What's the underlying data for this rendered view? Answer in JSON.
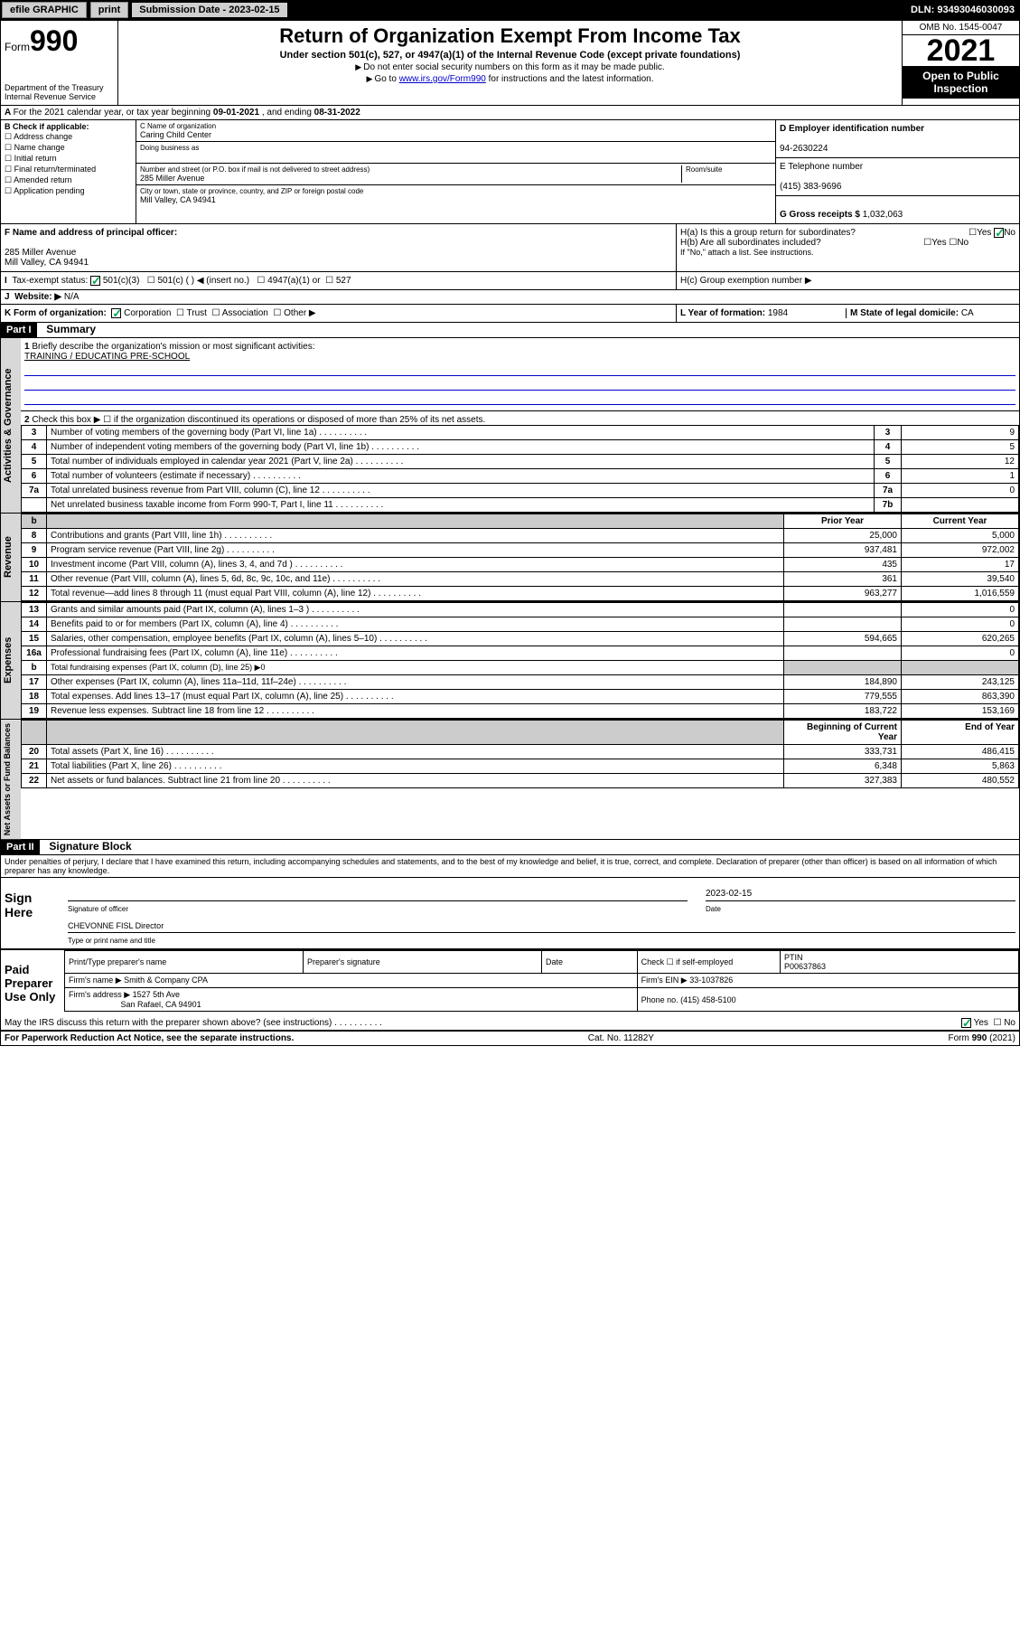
{
  "topbar": {
    "efile": "efile GRAPHIC",
    "print": "print",
    "sub_label": "Submission Date - ",
    "sub_date": "2023-02-15",
    "dln_label": "DLN: ",
    "dln": "93493046030093"
  },
  "header": {
    "form_label": "Form",
    "form_no": "990",
    "title": "Return of Organization Exempt From Income Tax",
    "subtitle": "Under section 501(c), 527, or 4947(a)(1) of the Internal Revenue Code (except private foundations)",
    "note1": "Do not enter social security numbers on this form as it may be made public.",
    "note2_pre": "Go to ",
    "note2_link": "www.irs.gov/Form990",
    "note2_post": " for instructions and the latest information.",
    "dept": "Department of the Treasury",
    "irs": "Internal Revenue Service",
    "omb": "OMB No. 1545-0047",
    "year": "2021",
    "open_pub": "Open to Public Inspection"
  },
  "periodA": {
    "text_pre": "For the 2021 calendar year, or tax year beginning ",
    "begin": "09-01-2021",
    "mid": " , and ending ",
    "end": "08-31-2022"
  },
  "boxB": {
    "title": "B Check if applicable:",
    "items": [
      "Address change",
      "Name change",
      "Initial return",
      "Final return/terminated",
      "Amended return",
      "Application pending"
    ]
  },
  "boxC": {
    "name_label": "C Name of organization",
    "name": "Caring Child Center",
    "dba_label": "Doing business as",
    "street_label": "Number and street (or P.O. box if mail is not delivered to street address)",
    "room_label": "Room/suite",
    "street": "285 Miller Avenue",
    "city_label": "City or town, state or province, country, and ZIP or foreign postal code",
    "city": "Mill Valley, CA  94941"
  },
  "boxD": {
    "label": "D Employer identification number",
    "value": "94-2630224"
  },
  "boxE": {
    "label": "E Telephone number",
    "value": "(415) 383-9696"
  },
  "boxG": {
    "label": "G Gross receipts $ ",
    "value": "1,032,063"
  },
  "boxF": {
    "label": "F  Name and address of principal officer:",
    "addr1": "285 Miller Avenue",
    "addr2": "Mill Valley, CA  94941"
  },
  "boxH": {
    "ha": "H(a)  Is this a group return for subordinates?",
    "hb": "H(b)  Are all subordinates included?",
    "hb_note": "If \"No,\" attach a list. See instructions.",
    "hc": "H(c)  Group exemption number ▶",
    "yes": "Yes",
    "no": "No"
  },
  "boxI": {
    "label": "Tax-exempt status:",
    "opt1": "501(c)(3)",
    "opt2": "501(c) (  ) ◀ (insert no.)",
    "opt3": "4947(a)(1) or",
    "opt4": "527"
  },
  "boxJ": {
    "label": "Website: ▶",
    "value": "N/A"
  },
  "boxK": {
    "label": "K Form of organization:",
    "opts": [
      "Corporation",
      "Trust",
      "Association",
      "Other ▶"
    ]
  },
  "boxL": {
    "label": "L Year of formation: ",
    "value": "1984"
  },
  "boxM": {
    "label": "M State of legal domicile: ",
    "value": "CA"
  },
  "part1": {
    "hdr": "Part I",
    "title": "Summary",
    "q1": "Briefly describe the organization's mission or most significant activities:",
    "q1_ans": "TRAINING / EDUCATING PRE-SCHOOL",
    "q2": "Check this box ▶ ☐  if the organization discontinued its operations or disposed of more than 25% of its net assets.",
    "sect_gov": "Activities & Governance",
    "sect_rev": "Revenue",
    "sect_exp": "Expenses",
    "sect_net": "Net Assets or Fund Balances",
    "col_prior": "Prior Year",
    "col_curr": "Current Year",
    "col_beg": "Beginning of Current Year",
    "col_end": "End of Year",
    "lines_gov": [
      {
        "n": "3",
        "t": "Number of voting members of the governing body (Part VI, line 1a)",
        "ln": "3",
        "v": "9"
      },
      {
        "n": "4",
        "t": "Number of independent voting members of the governing body (Part VI, line 1b)",
        "ln": "4",
        "v": "5"
      },
      {
        "n": "5",
        "t": "Total number of individuals employed in calendar year 2021 (Part V, line 2a)",
        "ln": "5",
        "v": "12"
      },
      {
        "n": "6",
        "t": "Total number of volunteers (estimate if necessary)",
        "ln": "6",
        "v": "1"
      },
      {
        "n": "7a",
        "t": "Total unrelated business revenue from Part VIII, column (C), line 12",
        "ln": "7a",
        "v": "0"
      },
      {
        "n": "",
        "t": "Net unrelated business taxable income from Form 990-T, Part I, line 11",
        "ln": "7b",
        "v": ""
      }
    ],
    "lines_rev": [
      {
        "n": "8",
        "t": "Contributions and grants (Part VIII, line 1h)",
        "p": "25,000",
        "c": "5,000"
      },
      {
        "n": "9",
        "t": "Program service revenue (Part VIII, line 2g)",
        "p": "937,481",
        "c": "972,002"
      },
      {
        "n": "10",
        "t": "Investment income (Part VIII, column (A), lines 3, 4, and 7d )",
        "p": "435",
        "c": "17"
      },
      {
        "n": "11",
        "t": "Other revenue (Part VIII, column (A), lines 5, 6d, 8c, 9c, 10c, and 11e)",
        "p": "361",
        "c": "39,540"
      },
      {
        "n": "12",
        "t": "Total revenue—add lines 8 through 11 (must equal Part VIII, column (A), line 12)",
        "p": "963,277",
        "c": "1,016,559"
      }
    ],
    "lines_exp": [
      {
        "n": "13",
        "t": "Grants and similar amounts paid (Part IX, column (A), lines 1–3 )",
        "p": "",
        "c": "0"
      },
      {
        "n": "14",
        "t": "Benefits paid to or for members (Part IX, column (A), line 4)",
        "p": "",
        "c": "0"
      },
      {
        "n": "15",
        "t": "Salaries, other compensation, employee benefits (Part IX, column (A), lines 5–10)",
        "p": "594,665",
        "c": "620,265"
      },
      {
        "n": "16a",
        "t": "Professional fundraising fees (Part IX, column (A), line 11e)",
        "p": "",
        "c": "0"
      },
      {
        "n": "b",
        "t": "Total fundraising expenses (Part IX, column (D), line 25) ▶0",
        "p": "",
        "c": "",
        "shaded": true
      },
      {
        "n": "17",
        "t": "Other expenses (Part IX, column (A), lines 11a–11d, 11f–24e)",
        "p": "184,890",
        "c": "243,125"
      },
      {
        "n": "18",
        "t": "Total expenses. Add lines 13–17 (must equal Part IX, column (A), line 25)",
        "p": "779,555",
        "c": "863,390"
      },
      {
        "n": "19",
        "t": "Revenue less expenses. Subtract line 18 from line 12",
        "p": "183,722",
        "c": "153,169"
      }
    ],
    "lines_net": [
      {
        "n": "20",
        "t": "Total assets (Part X, line 16)",
        "p": "333,731",
        "c": "486,415"
      },
      {
        "n": "21",
        "t": "Total liabilities (Part X, line 26)",
        "p": "6,348",
        "c": "5,863"
      },
      {
        "n": "22",
        "t": "Net assets or fund balances. Subtract line 21 from line 20",
        "p": "327,383",
        "c": "480,552"
      }
    ]
  },
  "part2": {
    "hdr": "Part II",
    "title": "Signature Block",
    "decl": "Under penalties of perjury, I declare that I have examined this return, including accompanying schedules and statements, and to the best of my knowledge and belief, it is true, correct, and complete. Declaration of preparer (other than officer) is based on all information of which preparer has any knowledge.",
    "sign_here": "Sign Here",
    "sig_officer": "Signature of officer",
    "date_label": "Date",
    "sig_date": "2023-02-15",
    "officer_name": "CHEVONNE FISL Director",
    "type_name": "Type or print name and title",
    "paid_prep": "Paid Preparer Use Only",
    "prep_name_label": "Print/Type preparer's name",
    "prep_sig_label": "Preparer's signature",
    "prep_date_label": "Date",
    "self_emp": "Check ☐ if self-employed",
    "ptin_label": "PTIN",
    "ptin": "P00637863",
    "firm_name_label": "Firm's name  ▶ ",
    "firm_name": "Smith & Company CPA",
    "firm_ein_label": "Firm's EIN ▶ ",
    "firm_ein": "33-1037826",
    "firm_addr_label": "Firm's address ▶ ",
    "firm_addr1": "1527 5th Ave",
    "firm_addr2": "San Rafael, CA  94901",
    "phone_label": "Phone no. ",
    "phone": "(415) 458-5100",
    "discuss": "May the IRS discuss this return with the preparer shown above? (see instructions)",
    "yes": "Yes",
    "no": "No"
  },
  "footer": {
    "paperwork": "For Paperwork Reduction Act Notice, see the separate instructions.",
    "cat": "Cat. No. 11282Y",
    "form": "Form 990 (2021)"
  }
}
